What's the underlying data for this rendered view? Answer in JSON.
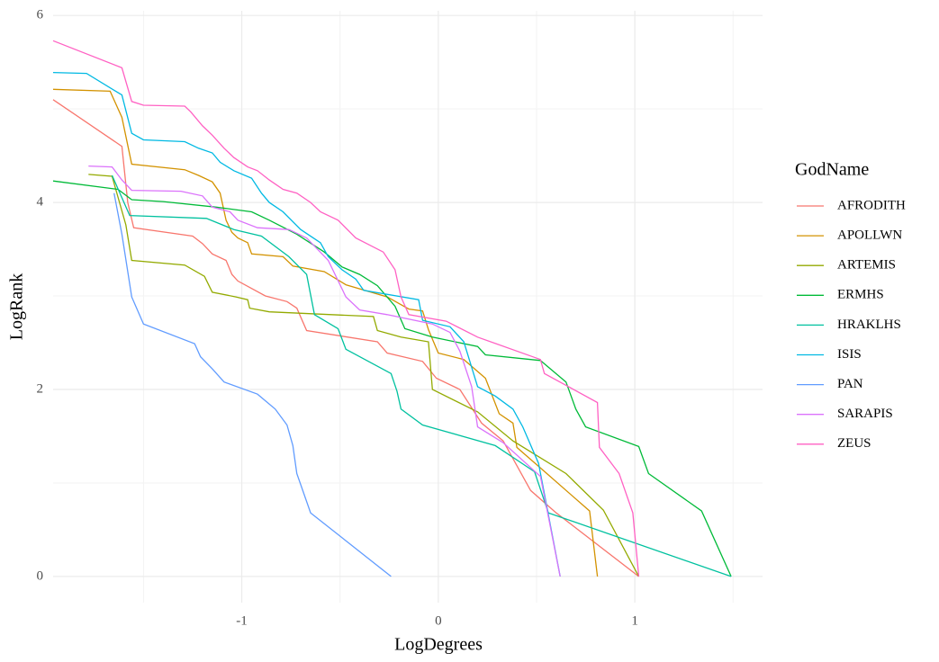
{
  "chart_data": {
    "type": "line",
    "xlabel": "LogDegrees",
    "ylabel": "LogRank",
    "legend_title": "GodName",
    "legend": "right",
    "xlim": [
      -1.96,
      1.65
    ],
    "ylim": [
      -0.28,
      6.05
    ],
    "xticks": [
      -1,
      0,
      1
    ],
    "yticks": [
      0,
      2,
      4,
      6
    ],
    "x_minor_grid": [
      -1.5,
      -0.5,
      0.5,
      1.5
    ],
    "y_minor_grid": [
      1,
      3,
      5
    ],
    "grid": true,
    "series": [
      {
        "name": "AFRODITH",
        "color": "#F8766D",
        "x": [
          -1.96,
          -1.61,
          -1.58,
          -1.55,
          -1.25,
          -1.2,
          -1.15,
          -1.08,
          -1.05,
          -1.02,
          -0.88,
          -0.77,
          -0.72,
          -0.67,
          -0.31,
          -0.26,
          -0.08,
          -0.01,
          0.11,
          0.22,
          0.33,
          0.47,
          0.6,
          1.02
        ],
        "values": [
          5.1,
          4.6,
          4.0,
          3.73,
          3.64,
          3.56,
          3.45,
          3.38,
          3.23,
          3.16,
          3.0,
          2.94,
          2.87,
          2.63,
          2.51,
          2.39,
          2.3,
          2.12,
          2.0,
          1.64,
          1.45,
          0.92,
          0.68,
          0
        ]
      },
      {
        "name": "APOLLWN",
        "color": "#D39200",
        "x": [
          -1.96,
          -1.67,
          -1.61,
          -1.56,
          -1.29,
          -1.22,
          -1.15,
          -1.11,
          -1.08,
          -1.05,
          -1.02,
          -0.97,
          -0.95,
          -0.79,
          -0.74,
          -0.58,
          -0.47,
          -0.26,
          -0.15,
          -0.08,
          -0.05,
          0,
          0.13,
          0.24,
          0.31,
          0.38,
          0.4,
          0.52,
          0.77,
          0.81
        ],
        "values": [
          5.21,
          5.19,
          4.91,
          4.41,
          4.35,
          4.29,
          4.22,
          4.1,
          3.81,
          3.68,
          3.62,
          3.57,
          3.45,
          3.42,
          3.32,
          3.26,
          3.12,
          2.99,
          2.86,
          2.84,
          2.64,
          2.39,
          2.32,
          2.12,
          1.74,
          1.64,
          1.38,
          1.16,
          0.7,
          0
        ]
      },
      {
        "name": "ARTEMIS",
        "color": "#93AA00",
        "x": [
          -1.78,
          -1.66,
          -1.59,
          -1.56,
          -1.29,
          -1.19,
          -1.15,
          -1.03,
          -0.97,
          -0.96,
          -0.86,
          -0.33,
          -0.31,
          -0.19,
          -0.05,
          -0.03,
          0.2,
          0.38,
          0.65,
          0.84,
          1.02
        ],
        "values": [
          4.3,
          4.28,
          3.76,
          3.38,
          3.33,
          3.21,
          3.04,
          2.99,
          2.96,
          2.87,
          2.83,
          2.78,
          2.63,
          2.56,
          2.51,
          2.0,
          1.76,
          1.45,
          1.1,
          0.71,
          0
        ]
      },
      {
        "name": "ERMHS",
        "color": "#00BA38",
        "x": [
          -1.96,
          -1.63,
          -1.56,
          -1.4,
          -1.13,
          -0.95,
          -0.86,
          -0.72,
          -0.58,
          -0.49,
          -0.4,
          -0.31,
          -0.22,
          -0.17,
          -0.03,
          0.2,
          0.24,
          0.52,
          0.65,
          0.7,
          0.75,
          1.02,
          1.07,
          1.34,
          1.49
        ],
        "values": [
          4.23,
          4.14,
          4.03,
          4.01,
          3.95,
          3.9,
          3.81,
          3.66,
          3.47,
          3.31,
          3.23,
          3.11,
          2.89,
          2.65,
          2.56,
          2.46,
          2.37,
          2.31,
          2.08,
          1.79,
          1.6,
          1.39,
          1.1,
          0.7,
          0
        ]
      },
      {
        "name": "HRAKLHS",
        "color": "#00C19F",
        "x": [
          -1.66,
          -1.57,
          -1.18,
          -1.04,
          -0.9,
          -0.76,
          -0.67,
          -0.63,
          -0.51,
          -0.47,
          -0.24,
          -0.21,
          -0.19,
          -0.08,
          0.29,
          0.49,
          0.56,
          1.49
        ],
        "values": [
          4.29,
          3.86,
          3.83,
          3.71,
          3.64,
          3.42,
          3.23,
          2.8,
          2.65,
          2.43,
          2.17,
          1.98,
          1.79,
          1.62,
          1.4,
          1.12,
          0.68,
          0
        ]
      },
      {
        "name": "ISIS",
        "color": "#00B9E3",
        "x": [
          -1.96,
          -1.79,
          -1.61,
          -1.56,
          -1.5,
          -1.29,
          -1.22,
          -1.15,
          -1.11,
          -1.04,
          -0.95,
          -0.9,
          -0.86,
          -0.79,
          -0.7,
          -0.6,
          -0.56,
          -0.49,
          -0.42,
          -0.38,
          -0.1,
          -0.08,
          0.06,
          0.13,
          0.2,
          0.29,
          0.38,
          0.43,
          0.51,
          0.62
        ],
        "values": [
          5.39,
          5.38,
          5.15,
          4.74,
          4.67,
          4.65,
          4.58,
          4.53,
          4.43,
          4.34,
          4.26,
          4.1,
          4.0,
          3.9,
          3.71,
          3.57,
          3.42,
          3.28,
          3.18,
          3.06,
          2.96,
          2.74,
          2.67,
          2.51,
          2.03,
          1.93,
          1.79,
          1.6,
          1.21,
          0
        ]
      },
      {
        "name": "PAN",
        "color": "#619CFF",
        "x": [
          -1.65,
          -1.61,
          -1.56,
          -1.5,
          -1.24,
          -1.21,
          -1.15,
          -1.09,
          -0.92,
          -0.83,
          -0.77,
          -0.74,
          -0.72,
          -0.65,
          -0.24
        ],
        "values": [
          4.1,
          3.66,
          2.99,
          2.7,
          2.49,
          2.35,
          2.22,
          2.08,
          1.95,
          1.79,
          1.62,
          1.4,
          1.1,
          0.68,
          0
        ]
      },
      {
        "name": "SARAPIS",
        "color": "#DB72FB",
        "x": [
          -1.78,
          -1.66,
          -1.61,
          -1.56,
          -1.31,
          -1.2,
          -1.15,
          -1.06,
          -1.02,
          -0.92,
          -0.76,
          -0.67,
          -0.56,
          -0.47,
          -0.4,
          -0.26,
          -0.03,
          0.06,
          0.11,
          0.17,
          0.2,
          0.33,
          0.52,
          0.62
        ],
        "values": [
          4.39,
          4.38,
          4.24,
          4.13,
          4.12,
          4.07,
          3.95,
          3.9,
          3.81,
          3.73,
          3.71,
          3.62,
          3.38,
          2.99,
          2.85,
          2.8,
          2.7,
          2.61,
          2.41,
          2.03,
          1.6,
          1.43,
          1.07,
          0
        ]
      },
      {
        "name": "ZEUS",
        "color": "#FF61C3",
        "x": [
          -1.96,
          -1.61,
          -1.56,
          -1.5,
          -1.29,
          -1.26,
          -1.2,
          -1.15,
          -1.09,
          -1.04,
          -0.97,
          -0.92,
          -0.86,
          -0.79,
          -0.72,
          -0.65,
          -0.6,
          -0.51,
          -0.42,
          -0.28,
          -0.22,
          -0.19,
          -0.15,
          0.04,
          0.2,
          0.52,
          0.54,
          0.81,
          0.82,
          0.92,
          0.99,
          1.02
        ],
        "values": [
          5.73,
          5.44,
          5.08,
          5.04,
          5.03,
          4.97,
          4.82,
          4.72,
          4.58,
          4.48,
          4.38,
          4.34,
          4.24,
          4.14,
          4.1,
          4.0,
          3.9,
          3.81,
          3.62,
          3.47,
          3.28,
          2.99,
          2.8,
          2.73,
          2.56,
          2.32,
          2.17,
          1.86,
          1.38,
          1.1,
          0.68,
          0
        ]
      }
    ]
  }
}
